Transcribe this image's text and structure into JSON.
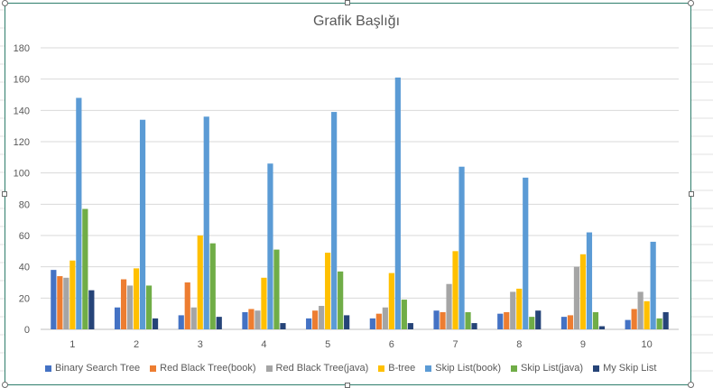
{
  "chart_data": {
    "type": "bar",
    "title": "Grafik Başlığı",
    "xlabel": "",
    "ylabel": "",
    "ylim": [
      0,
      180
    ],
    "yticks": [
      0,
      20,
      40,
      60,
      80,
      100,
      120,
      140,
      160,
      180
    ],
    "grid": true,
    "legend_position": "bottom",
    "categories": [
      "1",
      "2",
      "3",
      "4",
      "5",
      "6",
      "7",
      "8",
      "9",
      "10"
    ],
    "series": [
      {
        "name": "Binary Search Tree",
        "color": "#4472C4",
        "values": [
          38,
          14,
          9,
          11,
          7,
          7,
          12,
          10,
          8,
          6
        ]
      },
      {
        "name": "Red Black Tree(book)",
        "color": "#ED7D31",
        "values": [
          34,
          32,
          30,
          13,
          12,
          10,
          11,
          11,
          9,
          13
        ]
      },
      {
        "name": "Red Black Tree(java)",
        "color": "#A5A5A5",
        "values": [
          33,
          28,
          14,
          12,
          15,
          14,
          29,
          24,
          40,
          24
        ]
      },
      {
        "name": "B-tree",
        "color": "#FFC000",
        "values": [
          44,
          39,
          60,
          33,
          49,
          36,
          50,
          26,
          48,
          18
        ]
      },
      {
        "name": "Skip List(book)",
        "color": "#5B9BD5",
        "values": [
          148,
          134,
          136,
          106,
          139,
          161,
          104,
          97,
          62,
          56
        ]
      },
      {
        "name": "Skip List(java)",
        "color": "#70AD47",
        "values": [
          77,
          28,
          55,
          51,
          37,
          19,
          11,
          8,
          11,
          7
        ]
      },
      {
        "name": "My Skip List",
        "color": "#264478",
        "values": [
          25,
          7,
          8,
          4,
          9,
          4,
          4,
          12,
          2,
          11
        ]
      }
    ]
  },
  "colors": {
    "frame_border": "#2e7d6b",
    "gridline": "#d9d9d9",
    "axis_text": "#595959",
    "sheet_gridline": "#e1e1e1"
  }
}
